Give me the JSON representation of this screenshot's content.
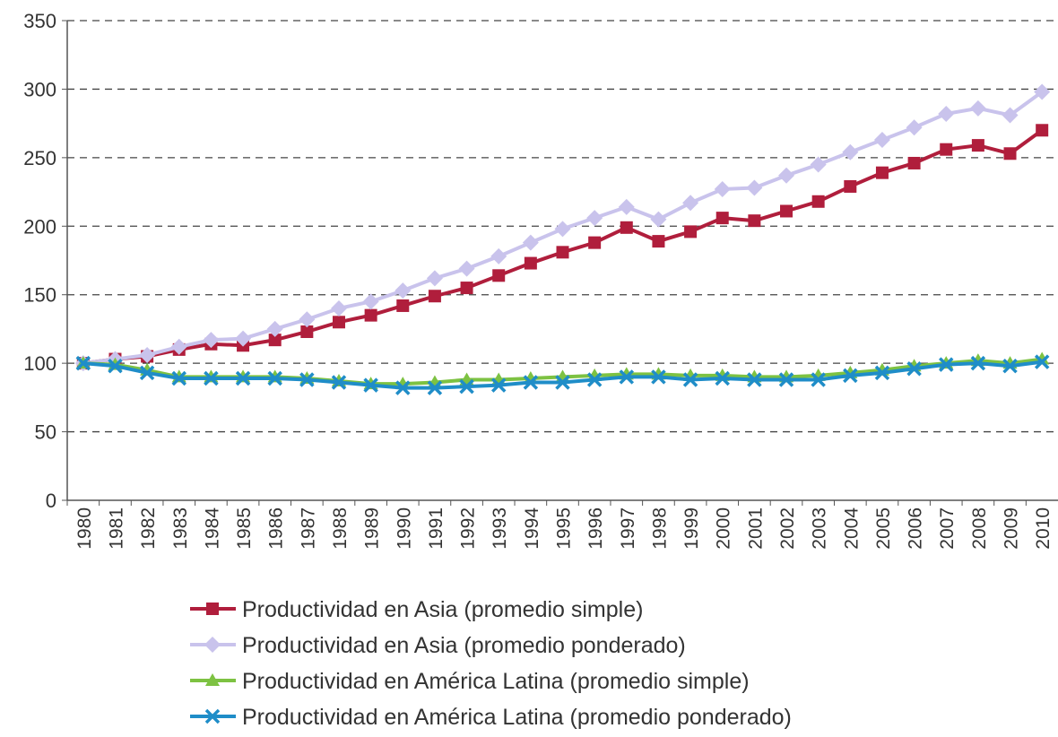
{
  "chart_data": {
    "type": "line",
    "categories": [
      "1980",
      "1981",
      "1982",
      "1983",
      "1984",
      "1985",
      "1986",
      "1987",
      "1988",
      "1989",
      "1990",
      "1991",
      "1992",
      "1993",
      "1994",
      "1995",
      "1996",
      "1997",
      "1998",
      "1999",
      "2000",
      "2001",
      "2002",
      "2003",
      "2004",
      "2005",
      "2006",
      "2007",
      "2008",
      "2009",
      "2010"
    ],
    "series": [
      {
        "name": "Productividad en Asia (promedio simple)",
        "color": "#b01e3c",
        "marker": "square",
        "values": [
          100,
          103,
          105,
          110,
          114,
          113,
          117,
          123,
          130,
          135,
          142,
          149,
          155,
          164,
          173,
          181,
          188,
          199,
          189,
          196,
          206,
          204,
          211,
          218,
          229,
          239,
          246,
          256,
          259,
          253,
          270
        ]
      },
      {
        "name": "Productividad en Asia (promedio ponderado)",
        "color": "#c9c3ec",
        "marker": "diamond",
        "values": [
          100,
          103,
          106,
          112,
          117,
          118,
          125,
          132,
          140,
          145,
          153,
          162,
          169,
          178,
          188,
          198,
          206,
          214,
          205,
          217,
          227,
          228,
          237,
          245,
          254,
          263,
          272,
          282,
          286,
          281,
          298
        ]
      },
      {
        "name": "Productividad en América Latina (promedio simple)",
        "color": "#7dc242",
        "marker": "triangle",
        "values": [
          100,
          99,
          95,
          90,
          90,
          90,
          90,
          89,
          87,
          85,
          85,
          86,
          88,
          88,
          89,
          90,
          91,
          92,
          92,
          91,
          91,
          90,
          90,
          91,
          93,
          95,
          98,
          100,
          102,
          100,
          103
        ]
      },
      {
        "name": "Productividad en América Latina (promedio ponderado)",
        "color": "#1f8dc8",
        "marker": "x",
        "values": [
          100,
          98,
          93,
          89,
          89,
          89,
          89,
          88,
          86,
          84,
          82,
          82,
          83,
          84,
          86,
          86,
          88,
          90,
          90,
          88,
          89,
          88,
          88,
          88,
          91,
          93,
          96,
          99,
          100,
          98,
          101
        ]
      }
    ],
    "ylim": [
      0,
      350
    ],
    "yticks": [
      0,
      50,
      100,
      150,
      200,
      250,
      300,
      350
    ],
    "grid": true,
    "legend": "bottom"
  }
}
